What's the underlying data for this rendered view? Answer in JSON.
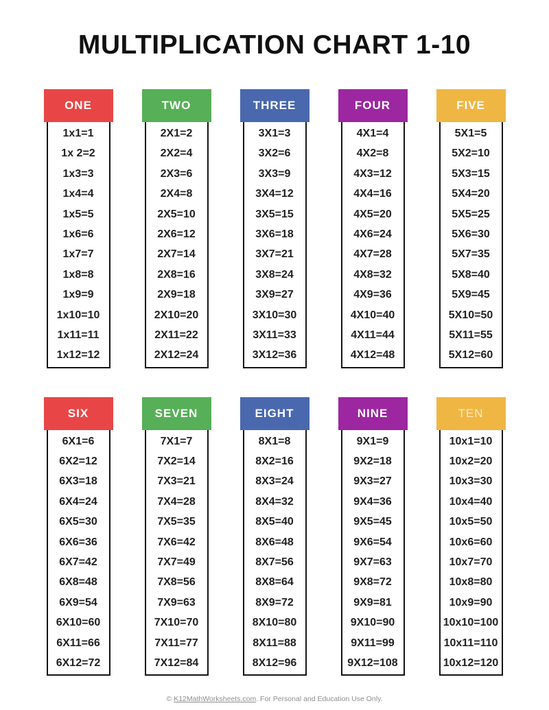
{
  "title": "MULTIPLICATION CHART 1-10",
  "palette": {
    "red": "#E84646",
    "green": "#57AF58",
    "blue": "#4A68AE",
    "purple": "#9C27A0",
    "yellow": "#F0B644"
  },
  "cards": [
    {
      "label": "ONE",
      "row": 1,
      "color": "#E84646",
      "faded_label": false,
      "facts": [
        "1x1=1",
        "1x 2=2",
        "1x3=3",
        "1x4=4",
        "1x5=5",
        "1x6=6",
        "1x7=7",
        "1x8=8",
        "1x9=9",
        "1x10=10",
        "1x11=11",
        "1x12=12"
      ]
    },
    {
      "label": "TWO",
      "row": 1,
      "color": "#57AF58",
      "faded_label": false,
      "facts": [
        "2X1=2",
        "2X2=4",
        "2X3=6",
        "2X4=8",
        "2X5=10",
        "2X6=12",
        "2X7=14",
        "2X8=16",
        "2X9=18",
        "2X10=20",
        "2X11=22",
        "2X12=24"
      ]
    },
    {
      "label": "THREE",
      "row": 1,
      "color": "#4A68AE",
      "faded_label": false,
      "facts": [
        "3X1=3",
        "3X2=6",
        "3X3=9",
        "3X4=12",
        "3X5=15",
        "3X6=18",
        "3X7=21",
        "3X8=24",
        "3X9=27",
        "3X10=30",
        "3X11=33",
        "3X12=36"
      ]
    },
    {
      "label": "FOUR",
      "row": 1,
      "color": "#9C27A0",
      "faded_label": false,
      "facts": [
        "4X1=4",
        "4X2=8",
        "4X3=12",
        "4X4=16",
        "4X5=20",
        "4X6=24",
        "4X7=28",
        "4X8=32",
        "4X9=36",
        "4X10=40",
        "4X11=44",
        "4X12=48"
      ]
    },
    {
      "label": "FIVE",
      "row": 1,
      "color": "#F0B644",
      "faded_label": false,
      "facts": [
        "5X1=5",
        "5X2=10",
        "5X3=15",
        "5X4=20",
        "5X5=25",
        "5X6=30",
        "5X7=35",
        "5X8=40",
        "5X9=45",
        "5X10=50",
        "5X11=55",
        "5X12=60"
      ]
    },
    {
      "label": "SIX",
      "row": 2,
      "color": "#E84646",
      "faded_label": false,
      "facts": [
        "6X1=6",
        "6X2=12",
        "6X3=18",
        "6X4=24",
        "6X5=30",
        "6X6=36",
        "6X7=42",
        "6X8=48",
        "6X9=54",
        "6X10=60",
        "6X11=66",
        "6X12=72"
      ]
    },
    {
      "label": "SEVEN",
      "row": 2,
      "color": "#57AF58",
      "faded_label": false,
      "facts": [
        "7X1=7",
        "7X2=14",
        "7X3=21",
        "7X4=28",
        "7X5=35",
        "7X6=42",
        "7X7=49",
        "7X8=56",
        "7X9=63",
        "7X10=70",
        "7X11=77",
        "7X12=84"
      ]
    },
    {
      "label": "EIGHT",
      "row": 2,
      "color": "#4A68AE",
      "faded_label": false,
      "facts": [
        "8X1=8",
        "8X2=16",
        "8X3=24",
        "8X4=32",
        "8X5=40",
        "8X6=48",
        "8X7=56",
        "8X8=64",
        "8X9=72",
        "8X10=80",
        "8X11=88",
        "8X12=96"
      ]
    },
    {
      "label": "NINE",
      "row": 2,
      "color": "#9C27A0",
      "faded_label": false,
      "facts": [
        "9X1=9",
        "9X2=18",
        "9X3=27",
        "9X4=36",
        "9X5=45",
        "9X6=54",
        "9X7=63",
        "9X8=72",
        "9X9=81",
        "9X10=90",
        "9X11=99",
        "9X12=108"
      ]
    },
    {
      "label": "TEN",
      "row": 2,
      "color": "#F0B644",
      "faded_label": true,
      "facts": [
        "10x1=10",
        "10x2=20",
        "10x3=30",
        "10x4=40",
        "10x5=50",
        "10x6=60",
        "10x7=70",
        "10x8=80",
        "10x9=90",
        "10x10=100",
        "10x11=110",
        "10x12=120"
      ]
    }
  ],
  "footer": {
    "copyright": "© ",
    "link_text": "K12MathWorksheets.com",
    "suffix": ". For Personal and Education Use Only."
  }
}
